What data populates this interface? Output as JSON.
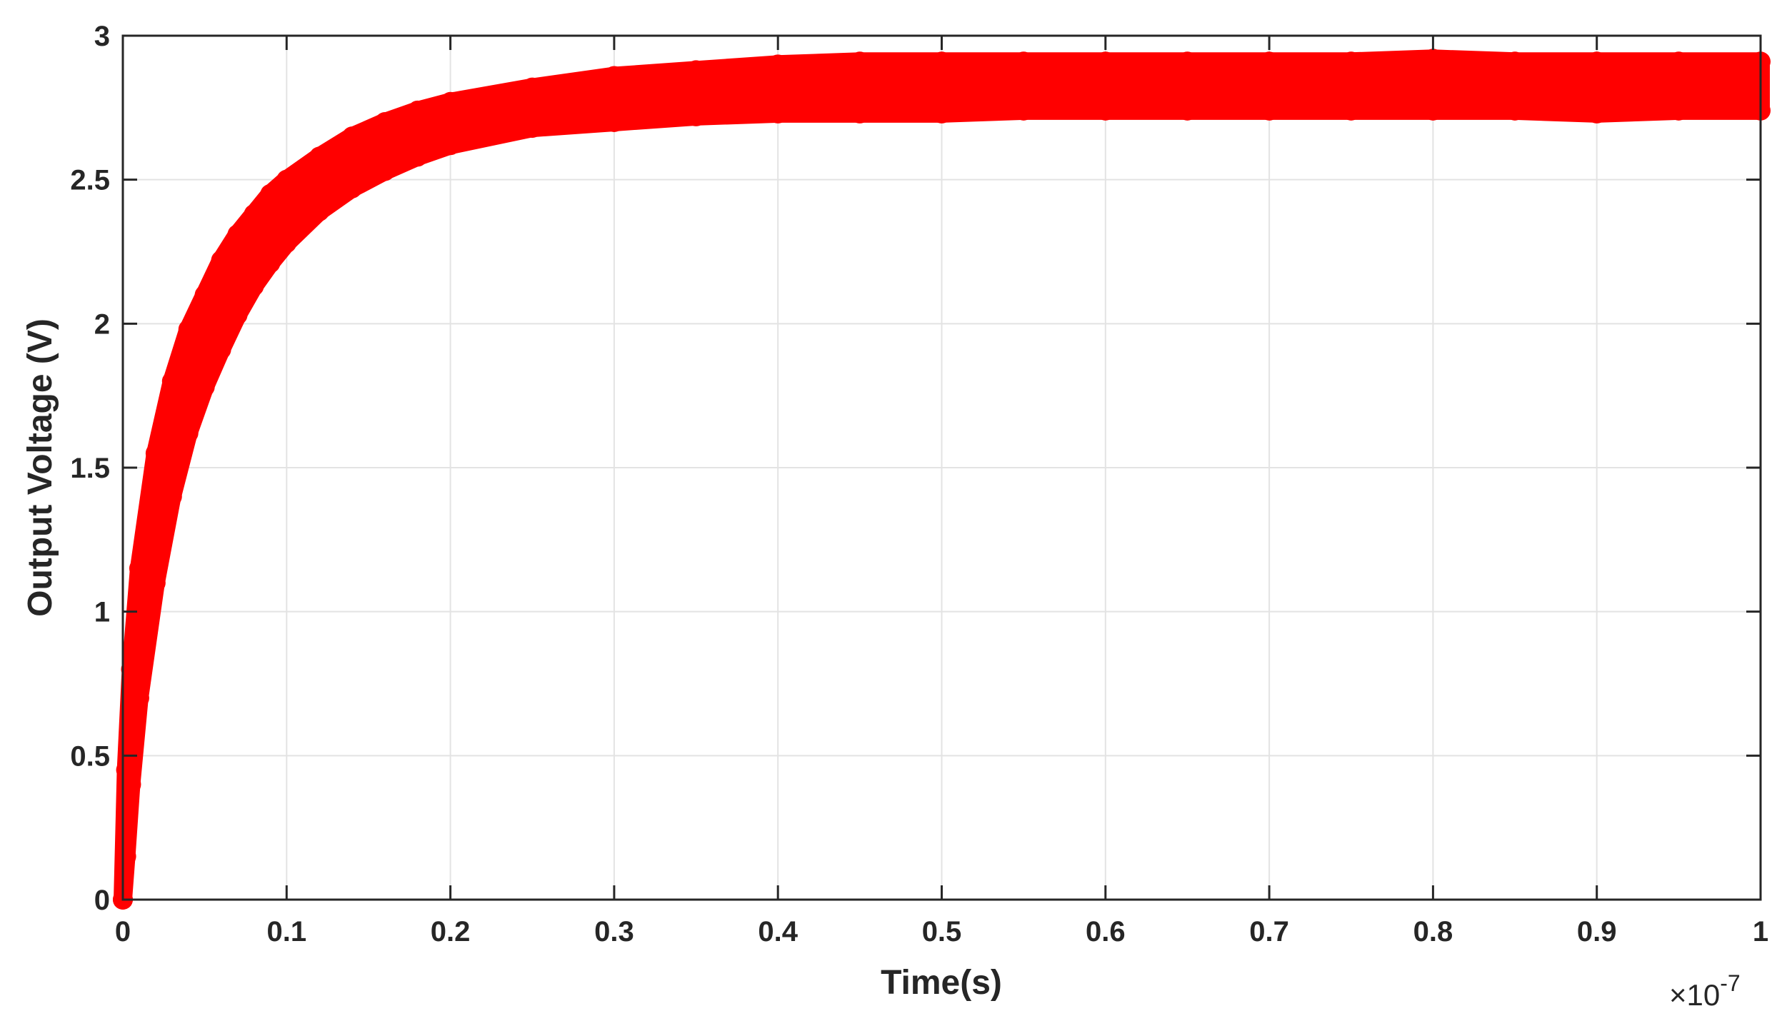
{
  "chart_data": {
    "type": "scatter",
    "title": "",
    "xlabel": "Time(s)",
    "ylabel": "Output Voltage (V)",
    "x_exponent_label": "×10",
    "x_exponent_power": "-7",
    "xlim": [
      0,
      1
    ],
    "ylim": [
      0,
      3
    ],
    "grid": true,
    "legend": "none",
    "x_ticks": [
      0,
      0.1,
      0.2,
      0.3,
      0.4,
      0.5,
      0.6,
      0.7,
      0.8,
      0.9,
      1
    ],
    "x_tick_labels": [
      "0",
      "0.1",
      "0.2",
      "0.3",
      "0.4",
      "0.5",
      "0.6",
      "0.7",
      "0.8",
      "0.9",
      "1"
    ],
    "y_ticks": [
      0,
      0.5,
      1,
      1.5,
      2,
      2.5,
      3
    ],
    "y_tick_labels": [
      "0",
      "0.5",
      "1",
      "1.5",
      "2",
      "2.5",
      "3"
    ],
    "series": [
      {
        "color": "#ff0000",
        "marker": "filled-circle",
        "x": [
          0.0,
          0.002,
          0.005,
          0.01,
          0.02,
          0.03,
          0.04,
          0.05,
          0.06,
          0.07,
          0.08,
          0.09,
          0.1,
          0.12,
          0.14,
          0.16,
          0.18,
          0.2,
          0.25,
          0.3,
          0.35,
          0.4,
          0.45,
          0.5,
          0.55,
          0.6,
          0.65,
          0.7,
          0.75,
          0.8,
          0.85,
          0.9,
          0.95,
          1.0
        ],
        "y_upper": [
          0.0,
          0.45,
          0.8,
          1.15,
          1.55,
          1.8,
          1.98,
          2.1,
          2.22,
          2.31,
          2.38,
          2.45,
          2.5,
          2.58,
          2.65,
          2.7,
          2.74,
          2.77,
          2.82,
          2.86,
          2.88,
          2.9,
          2.91,
          2.91,
          2.91,
          2.91,
          2.91,
          2.91,
          2.91,
          2.92,
          2.91,
          2.91,
          2.91,
          2.91
        ],
        "y_lower": [
          0.0,
          0.15,
          0.4,
          0.7,
          1.1,
          1.4,
          1.62,
          1.78,
          1.91,
          2.03,
          2.13,
          2.21,
          2.28,
          2.39,
          2.47,
          2.53,
          2.58,
          2.62,
          2.68,
          2.7,
          2.72,
          2.73,
          2.73,
          2.73,
          2.74,
          2.74,
          2.74,
          2.74,
          2.74,
          2.74,
          2.74,
          2.73,
          2.74,
          2.74
        ]
      }
    ]
  }
}
